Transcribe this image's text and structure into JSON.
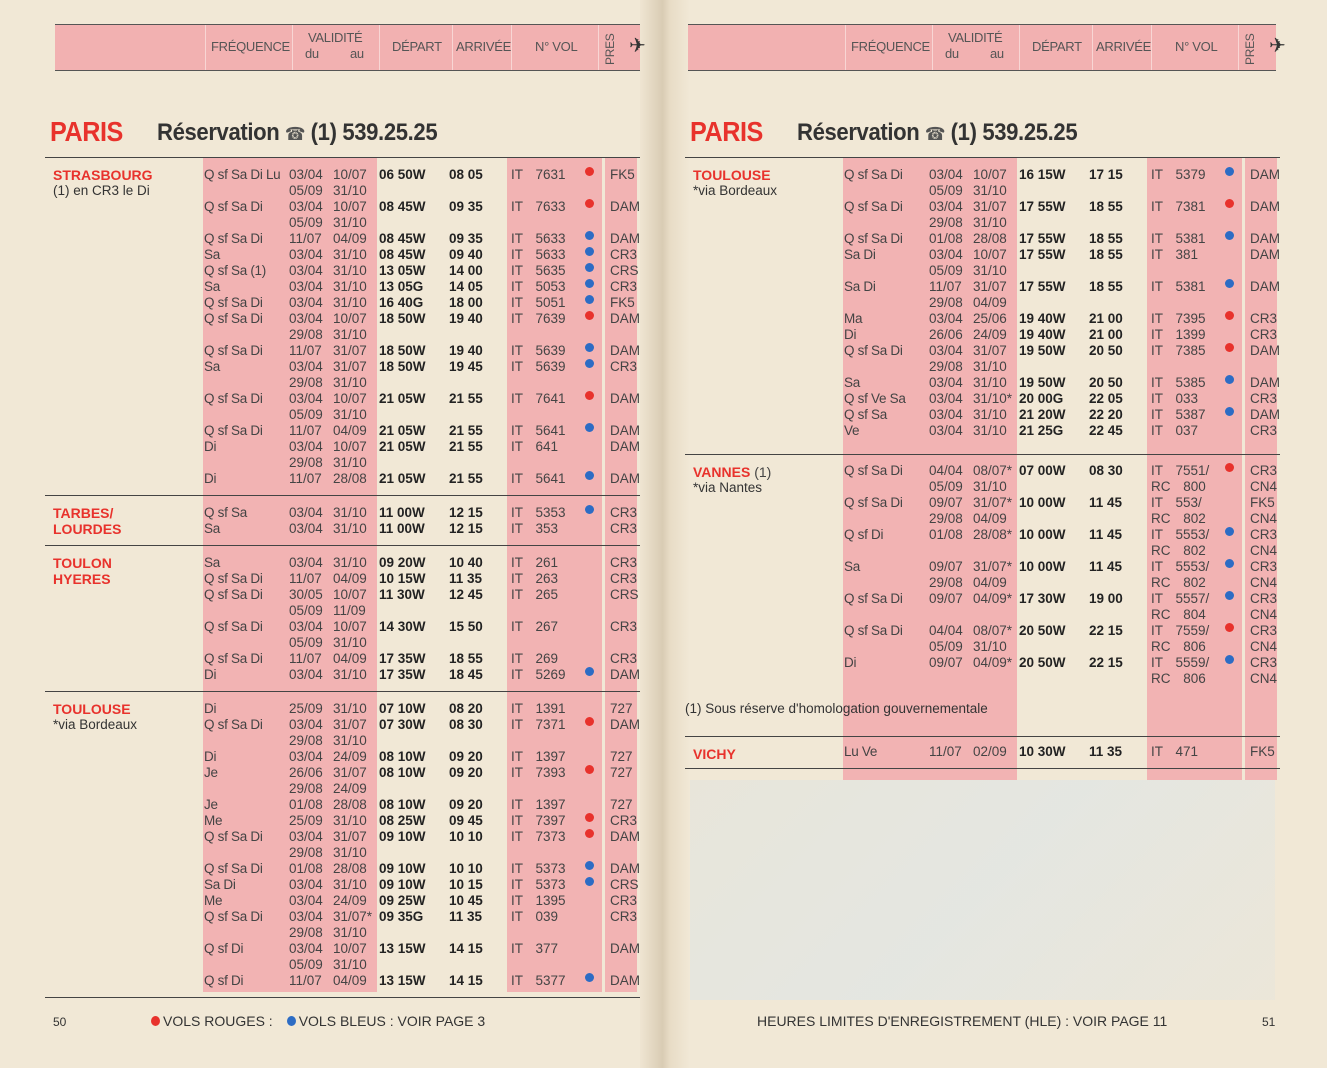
{
  "header": {
    "frequence": "FRÉQUENCE",
    "validite": "VALIDITÉ",
    "du": "du",
    "au": "au",
    "depart": "DÉPART",
    "arrivee": "ARRIVÉE",
    "no_vol": "N° VOL",
    "pres": "PRES",
    "plane_icon": "airplane-icon"
  },
  "colors": {
    "red_flights": "#e8322c",
    "blue_flights": "#2d6cc4",
    "column_pink": "#f2b3b3",
    "paper": "#f1e8d6"
  },
  "pages": [
    {
      "origin": "PARIS",
      "reservation_label": "Réservation",
      "phone_icon": "telephone-icon",
      "phone": "(1) 539.25.25",
      "page_number": "50",
      "sections": [
        {
          "city": "STRASBOURG",
          "note": "(1) en CR3 le Di",
          "rows": [
            [
              "Q sf Sa Di Lu",
              "03/04",
              "10/07",
              "06 50W",
              "08 05",
              "IT 7631",
              "r",
              "FK5"
            ],
            [
              "",
              "05/09",
              "31/10",
              "",
              "",
              "",
              "",
              ""
            ],
            [
              "Q sf Sa Di",
              "03/04",
              "10/07",
              "08 45W",
              "09 35",
              "IT 7633",
              "r",
              "DAM"
            ],
            [
              "",
              "05/09",
              "31/10",
              "",
              "",
              "",
              "",
              ""
            ],
            [
              "Q sf Sa Di",
              "11/07",
              "04/09",
              "08 45W",
              "09 35",
              "IT 5633",
              "b",
              "DAM"
            ],
            [
              "Sa",
              "03/04",
              "31/10",
              "08 45W",
              "09 40",
              "IT 5633",
              "b",
              "CR3"
            ],
            [
              "Q sf Sa (1)",
              "03/04",
              "31/10",
              "13 05W",
              "14 00",
              "IT 5635",
              "b",
              "CRS"
            ],
            [
              "Sa",
              "03/04",
              "31/10",
              "13 05G",
              "14 05",
              "IT 5053",
              "b",
              "CR3"
            ],
            [
              "Q sf Sa Di",
              "03/04",
              "31/10",
              "16 40G",
              "18 00",
              "IT 5051",
              "b",
              "FK5"
            ],
            [
              "Q sf Sa Di",
              "03/04",
              "10/07",
              "18 50W",
              "19 40",
              "IT 7639",
              "r",
              "DAM"
            ],
            [
              "",
              "29/08",
              "31/10",
              "",
              "",
              "",
              "",
              ""
            ],
            [
              "Q sf Sa Di",
              "11/07",
              "31/07",
              "18 50W",
              "19 40",
              "IT 5639",
              "b",
              "DAM"
            ],
            [
              "Sa",
              "03/04",
              "31/07",
              "18 50W",
              "19 45",
              "IT 5639",
              "b",
              "CR3"
            ],
            [
              "",
              "29/08",
              "31/10",
              "",
              "",
              "",
              "",
              ""
            ],
            [
              "Q sf Sa Di",
              "03/04",
              "10/07",
              "21 05W",
              "21 55",
              "IT 7641",
              "r",
              "DAM"
            ],
            [
              "",
              "05/09",
              "31/10",
              "",
              "",
              "",
              "",
              ""
            ],
            [
              "Q sf Sa Di",
              "11/07",
              "04/09",
              "21 05W",
              "21 55",
              "IT 5641",
              "b",
              "DAM"
            ],
            [
              "Di",
              "03/04",
              "10/07",
              "21 05W",
              "21 55",
              "IT 641",
              "",
              "DAM"
            ],
            [
              "",
              "29/08",
              "31/10",
              "",
              "",
              "",
              "",
              ""
            ],
            [
              "Di",
              "11/07",
              "28/08",
              "21 05W",
              "21 55",
              "IT 5641",
              "b",
              "DAM"
            ]
          ]
        },
        {
          "city": "TARBES/\nLOURDES",
          "rows": [
            [
              "Q sf Sa",
              "03/04",
              "31/10",
              "11 00W",
              "12 15",
              "IT 5353",
              "b",
              "CR3"
            ],
            [
              "Sa",
              "03/04",
              "31/10",
              "11 00W",
              "12 15",
              "IT 353",
              "",
              "CR3"
            ]
          ]
        },
        {
          "city": "TOULON\nHYERES",
          "rows": [
            [
              "Sa",
              "03/04",
              "31/10",
              "09 20W",
              "10 40",
              "IT 261",
              "",
              "CR3"
            ],
            [
              "Q sf Sa Di",
              "11/07",
              "04/09",
              "10 15W",
              "11 35",
              "IT 263",
              "",
              "CR3"
            ],
            [
              "Q sf Sa Di",
              "30/05",
              "10/07",
              "11 30W",
              "12 45",
              "IT 265",
              "",
              "CRS"
            ],
            [
              "",
              "05/09",
              "11/09",
              "",
              "",
              "",
              "",
              ""
            ],
            [
              "Q sf Sa Di",
              "03/04",
              "10/07",
              "14 30W",
              "15 50",
              "IT 267",
              "",
              "CR3"
            ],
            [
              "",
              "05/09",
              "31/10",
              "",
              "",
              "",
              "",
              ""
            ],
            [
              "Q sf Sa Di",
              "11/07",
              "04/09",
              "17 35W",
              "18 55",
              "IT 269",
              "",
              "CR3"
            ],
            [
              "Di",
              "03/04",
              "31/10",
              "17 35W",
              "18 45",
              "IT 5269",
              "b",
              "DAM"
            ]
          ]
        },
        {
          "city": "TOULOUSE",
          "note": "*via Bordeaux",
          "rows": [
            [
              "Di",
              "25/09",
              "31/10",
              "07 10W",
              "08 20",
              "IT 1391",
              "",
              "727"
            ],
            [
              "Q sf Sa Di",
              "03/04",
              "31/07",
              "07 30W",
              "08 30",
              "IT 7371",
              "r",
              "DAM"
            ],
            [
              "",
              "29/08",
              "31/10",
              "",
              "",
              "",
              "",
              ""
            ],
            [
              "Di",
              "03/04",
              "24/09",
              "08 10W",
              "09 20",
              "IT 1397",
              "",
              "727"
            ],
            [
              "Je",
              "26/06",
              "31/07",
              "08 10W",
              "09 20",
              "IT 7393",
              "r",
              "727"
            ],
            [
              "",
              "29/08",
              "24/09",
              "",
              "",
              "",
              "",
              ""
            ],
            [
              "Je",
              "01/08",
              "28/08",
              "08 10W",
              "09 20",
              "IT 1397",
              "",
              "727"
            ],
            [
              "Me",
              "25/09",
              "31/10",
              "08 25W",
              "09 45",
              "IT 7397",
              "r",
              "CR3"
            ],
            [
              "Q sf Sa Di",
              "03/04",
              "31/07",
              "09 10W",
              "10 10",
              "IT 7373",
              "r",
              "DAM"
            ],
            [
              "",
              "29/08",
              "31/10",
              "",
              "",
              "",
              "",
              ""
            ],
            [
              "Q sf Sa Di",
              "01/08",
              "28/08",
              "09 10W",
              "10 10",
              "IT 5373",
              "b",
              "DAM"
            ],
            [
              "Sa Di",
              "03/04",
              "31/10",
              "09 10W",
              "10 15",
              "IT 5373",
              "b",
              "CRS"
            ],
            [
              "Me",
              "03/04",
              "24/09",
              "09 25W",
              "10 45",
              "IT 1395",
              "",
              "CR3"
            ],
            [
              "Q sf Sa Di",
              "03/04",
              "31/07*",
              "09 35G",
              "11 35",
              "IT 039",
              "",
              "CR3"
            ],
            [
              "",
              "29/08",
              "31/10",
              "",
              "",
              "",
              "",
              ""
            ],
            [
              "Q sf Di",
              "03/04",
              "10/07",
              "13 15W",
              "14 15",
              "IT 377",
              "",
              "DAM"
            ],
            [
              "",
              "05/09",
              "31/10",
              "",
              "",
              "",
              "",
              ""
            ],
            [
              "Q sf Di",
              "11/07",
              "04/09",
              "13 15W",
              "14 15",
              "IT 5377",
              "b",
              "DAM"
            ]
          ]
        }
      ],
      "footer": {
        "red_label": "VOLS ROUGES :",
        "blue_label": "VOLS BLEUS : VOIR PAGE 3"
      }
    },
    {
      "origin": "PARIS",
      "reservation_label": "Réservation",
      "phone_icon": "telephone-icon",
      "phone": "(1) 539.25.25",
      "page_number": "51",
      "sections": [
        {
          "city": "TOULOUSE",
          "note": "*via Bordeaux",
          "rows": [
            [
              "Q sf Sa Di",
              "03/04",
              "10/07",
              "16 15W",
              "17 15",
              "IT 5379",
              "b",
              "DAM"
            ],
            [
              "",
              "05/09",
              "31/10",
              "",
              "",
              "",
              "",
              ""
            ],
            [
              "Q sf Sa Di",
              "03/04",
              "31/07",
              "17 55W",
              "18 55",
              "IT 7381",
              "r",
              "DAM"
            ],
            [
              "",
              "29/08",
              "31/10",
              "",
              "",
              "",
              "",
              ""
            ],
            [
              "Q sf Sa Di",
              "01/08",
              "28/08",
              "17 55W",
              "18 55",
              "IT 5381",
              "b",
              "DAM"
            ],
            [
              "Sa Di",
              "03/04",
              "10/07",
              "17 55W",
              "18 55",
              "IT 381",
              "",
              "DAM"
            ],
            [
              "",
              "05/09",
              "31/10",
              "",
              "",
              "",
              "",
              ""
            ],
            [
              "Sa Di",
              "11/07",
              "31/07",
              "17 55W",
              "18 55",
              "IT 5381",
              "b",
              "DAM"
            ],
            [
              "",
              "29/08",
              "04/09",
              "",
              "",
              "",
              "",
              ""
            ],
            [
              "Ma",
              "03/04",
              "25/06",
              "19 40W",
              "21 00",
              "IT 7395",
              "r",
              "CR3"
            ],
            [
              "Di",
              "26/06",
              "24/09",
              "19 40W",
              "21 00",
              "IT 1399",
              "",
              "CR3"
            ],
            [
              "Q sf Sa Di",
              "03/04",
              "31/07",
              "19 50W",
              "20 50",
              "IT 7385",
              "r",
              "DAM"
            ],
            [
              "",
              "29/08",
              "31/10",
              "",
              "",
              "",
              "",
              ""
            ],
            [
              "Sa",
              "03/04",
              "31/10",
              "19 50W",
              "20 50",
              "IT 5385",
              "b",
              "DAM"
            ],
            [
              "Q sf Ve Sa",
              "03/04",
              "31/10*",
              "20 00G",
              "22 05",
              "IT 033",
              "",
              "CR3"
            ],
            [
              "Q sf Sa",
              "03/04",
              "31/10",
              "21 20W",
              "22 20",
              "IT 5387",
              "b",
              "DAM"
            ],
            [
              "Ve",
              "03/04",
              "31/10",
              "21 25G",
              "22 45",
              "IT 037",
              "",
              "CR3"
            ]
          ]
        },
        {
          "city": "VANNES",
          "city_suffix": " (1)",
          "note": "*via Nantes",
          "rows": [
            [
              "Q sf Sa Di",
              "04/04",
              "08/07*",
              "07 00W",
              "08 30",
              "IT 7551/",
              "r",
              "CR3"
            ],
            [
              "",
              "05/09",
              "31/10",
              "",
              "",
              "RC 800",
              "",
              "CN4"
            ],
            [
              "Q sf Sa Di",
              "09/07",
              "31/07*",
              "10 00W",
              "11 45",
              "IT 553/",
              "",
              "FK5"
            ],
            [
              "",
              "29/08",
              "04/09",
              "",
              "",
              "RC 802",
              "",
              "CN4"
            ],
            [
              "Q sf Di",
              "01/08",
              "28/08*",
              "10 00W",
              "11 45",
              "IT 5553/",
              "b",
              "CR3"
            ],
            [
              "",
              "",
              "",
              "",
              "",
              "RC 802",
              "",
              "CN4"
            ],
            [
              "Sa",
              "09/07",
              "31/07*",
              "10 00W",
              "11 45",
              "IT 5553/",
              "b",
              "CR3"
            ],
            [
              "",
              "29/08",
              "04/09",
              "",
              "",
              "RC 802",
              "",
              "CN4"
            ],
            [
              "Q sf Sa Di",
              "09/07",
              "04/09*",
              "17 30W",
              "19 00",
              "IT 5557/",
              "b",
              "CR3"
            ],
            [
              "",
              "",
              "",
              "",
              "",
              "RC 804",
              "",
              "CN4"
            ],
            [
              "Q sf Sa Di",
              "04/04",
              "08/07*",
              "20 50W",
              "22 15",
              "IT 7559/",
              "r",
              "CR3"
            ],
            [
              "",
              "05/09",
              "31/10",
              "",
              "",
              "RC 806",
              "",
              "CN4"
            ],
            [
              "Di",
              "09/07",
              "04/09*",
              "20 50W",
              "22 15",
              "IT 5559/",
              "b",
              "CR3"
            ],
            [
              "",
              "",
              "",
              "",
              "",
              "RC 806",
              "",
              "CN4"
            ]
          ]
        },
        {
          "city": "VICHY",
          "rows": [
            [
              "Lu Ve",
              "11/07",
              "02/09",
              "10 30W",
              "11 35",
              "IT 471",
              "",
              "FK5"
            ]
          ]
        }
      ],
      "footnote": "(1) Sous réserve d'homologation gouvernementale",
      "footer": {
        "hle": "HEURES LIMITES D'ENREGISTREMENT (HLE) : VOIR PAGE 11"
      }
    }
  ]
}
